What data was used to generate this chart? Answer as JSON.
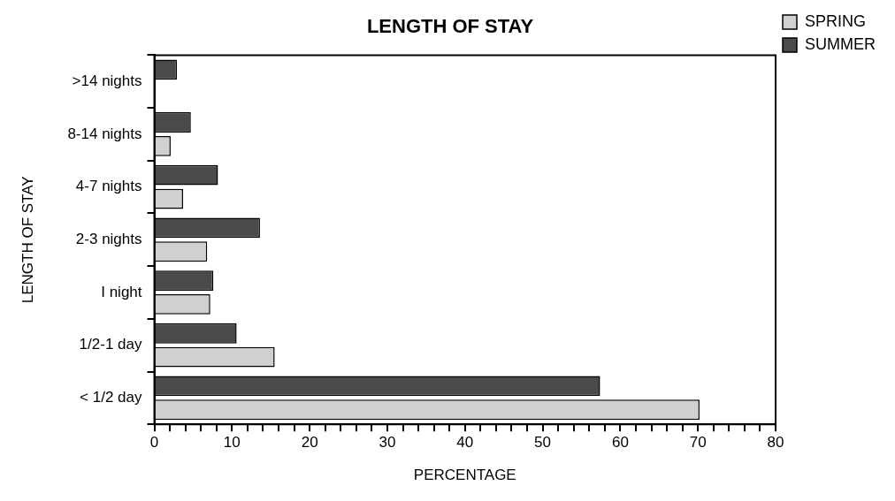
{
  "chart_data": {
    "type": "bar",
    "orientation": "horizontal",
    "title": "LENGTH OF STAY",
    "xlabel": "PERCENTAGE",
    "ylabel": "LENGTH OF STAY",
    "categories": [
      ">14 nights",
      "8-14 nights",
      "4-7 nights",
      "2-3 nights",
      "I night",
      "1/2-1 day",
      "< 1/2 day"
    ],
    "series": [
      {
        "name": "SPRING",
        "color": "#d0d0d0",
        "values": [
          null,
          2.1,
          3.7,
          6.8,
          7.2,
          15.5,
          70.2
        ]
      },
      {
        "name": "SUMMER",
        "color": "#4a4a4a",
        "values": [
          2.9,
          4.7,
          8.2,
          13.6,
          7.6,
          10.6,
          57.4
        ]
      }
    ],
    "xlim": [
      0,
      80
    ],
    "xticks": [
      0,
      {
        "value": 2,
        "label": null
      },
      {
        "value": 4,
        "label": null
      },
      {
        "value": 6,
        "label": null
      },
      {
        "value": 8,
        "label": null
      },
      10,
      {
        "value": 12,
        "label": null
      },
      {
        "value": 14,
        "label": null
      },
      {
        "value": 16,
        "label": null
      },
      {
        "value": 18,
        "label": null
      },
      20,
      {
        "value": 22,
        "label": null
      },
      {
        "value": 24,
        "label": null
      },
      {
        "value": 26,
        "label": null
      },
      {
        "value": 28,
        "label": null
      },
      30,
      {
        "value": 32,
        "label": null
      },
      {
        "value": 34,
        "label": null
      },
      {
        "value": 36,
        "label": null
      },
      {
        "value": 38,
        "label": null
      },
      40,
      {
        "value": 42,
        "label": null
      },
      {
        "value": 44,
        "label": null
      },
      {
        "value": 46,
        "label": null
      },
      {
        "value": 48,
        "label": null
      },
      50,
      {
        "value": 52,
        "label": null
      },
      {
        "value": 54,
        "label": null
      },
      {
        "value": 56,
        "label": null
      },
      {
        "value": 58,
        "label": null
      },
      60,
      {
        "value": 62,
        "label": null
      },
      {
        "value": 64,
        "label": null
      },
      {
        "value": 66,
        "label": null
      },
      {
        "value": 68,
        "label": null
      },
      70,
      {
        "value": 72,
        "label": null
      },
      {
        "value": 74,
        "label": null
      },
      {
        "value": 76,
        "label": null
      },
      {
        "value": 78,
        "label": null
      },
      80
    ],
    "grid": false,
    "legend": "top right"
  }
}
